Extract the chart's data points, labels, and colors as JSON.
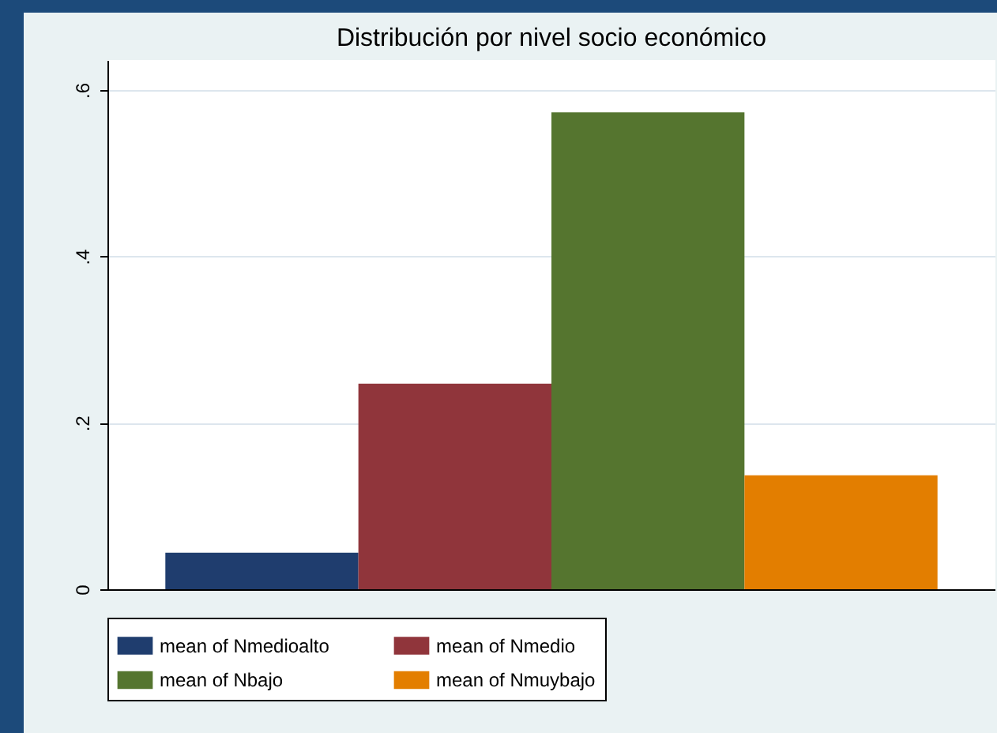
{
  "chart_data": {
    "type": "bar",
    "title": "Distribución por nivel socio económico",
    "categories": [
      null
    ],
    "series": [
      {
        "name": "mean of Nmedioalto",
        "color": "#1f3d6e",
        "values": [
          0.044
        ]
      },
      {
        "name": "mean of Nmedio",
        "color": "#90353b",
        "values": [
          0.247
        ]
      },
      {
        "name": "mean of Nbajo",
        "color": "#55752f",
        "values": [
          0.573
        ]
      },
      {
        "name": "mean of Nmuybajo",
        "color": "#e37e00",
        "values": [
          0.137
        ]
      }
    ],
    "ylim": [
      0,
      0.636
    ],
    "yticks": [
      0,
      {
        "value": 0.2,
        "label": ".2"
      },
      {
        "value": 0.4,
        "label": ".4"
      },
      {
        "value": 0.6,
        "label": ".6"
      }
    ],
    "grid": "y",
    "legend": "bottom"
  }
}
